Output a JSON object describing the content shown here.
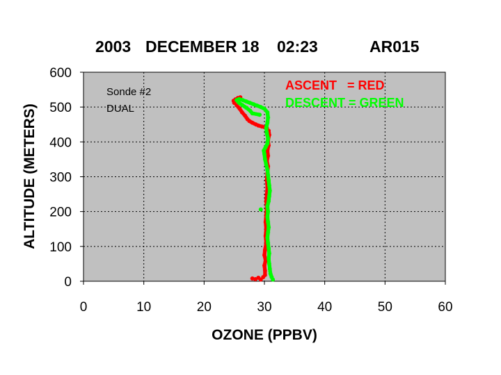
{
  "chart_data": {
    "type": "scatter",
    "title": {
      "year": "2003",
      "date": "DECEMBER 18",
      "time": "02:23",
      "station": "AR015"
    },
    "xlabel": "OZONE (PPBV)",
    "ylabel": "ALTITUDE (METERS)",
    "xlim": [
      0,
      60
    ],
    "ylim": [
      0,
      600
    ],
    "xticks": [
      "0",
      "10",
      "20",
      "30",
      "40",
      "50",
      "60"
    ],
    "yticks": [
      "0",
      "100",
      "200",
      "300",
      "400",
      "500",
      "600"
    ],
    "grid": true,
    "plot_background": "#c0c0c0",
    "annotations": [
      "Sonde #2",
      "DUAL"
    ],
    "legend_placement": "top-right",
    "legend": [
      {
        "text": "ASCENT   = RED",
        "color": "#ff0000"
      },
      {
        "text": "DESCENT = GREEN",
        "color": "#00ff00"
      }
    ],
    "series": [
      {
        "color": "#ff0000",
        "points": [
          [
            28.0,
            8
          ],
          [
            28.5,
            6
          ],
          [
            29.0,
            10
          ],
          [
            29.4,
            5
          ],
          [
            29.8,
            12
          ],
          [
            30.1,
            18
          ],
          [
            30.1,
            30
          ],
          [
            30.0,
            45
          ],
          [
            30.2,
            60
          ],
          [
            30.0,
            75
          ],
          [
            30.1,
            90
          ],
          [
            30.3,
            110
          ],
          [
            30.2,
            130
          ],
          [
            30.3,
            150
          ],
          [
            30.2,
            170
          ],
          [
            30.3,
            190
          ],
          [
            30.4,
            210
          ],
          [
            30.3,
            230
          ],
          [
            30.4,
            250
          ],
          [
            30.5,
            270
          ],
          [
            30.4,
            290
          ],
          [
            30.5,
            310
          ],
          [
            30.6,
            330
          ],
          [
            30.4,
            345
          ],
          [
            30.6,
            360
          ],
          [
            30.5,
            375
          ],
          [
            30.7,
            390
          ],
          [
            30.6,
            405
          ],
          [
            30.8,
            420
          ],
          [
            30.7,
            432
          ],
          [
            30.4,
            440
          ],
          [
            29.6,
            444
          ],
          [
            29.0,
            447
          ],
          [
            28.6,
            450
          ],
          [
            28.0,
            455
          ],
          [
            27.5,
            460
          ],
          [
            27.2,
            465
          ],
          [
            26.8,
            475
          ],
          [
            26.3,
            485
          ],
          [
            25.9,
            495
          ],
          [
            25.4,
            505
          ],
          [
            25.0,
            512
          ],
          [
            24.9,
            518
          ],
          [
            25.2,
            522
          ],
          [
            25.6,
            526
          ],
          [
            26.0,
            528
          ],
          [
            25.8,
            524
          ]
        ]
      },
      {
        "color": "#00ff00",
        "points": [
          [
            31.4,
            5
          ],
          [
            31.2,
            12
          ],
          [
            31.0,
            22
          ],
          [
            30.9,
            35
          ],
          [
            30.8,
            50
          ],
          [
            30.7,
            65
          ],
          [
            30.8,
            80
          ],
          [
            30.7,
            95
          ],
          [
            30.6,
            110
          ],
          [
            30.5,
            125
          ],
          [
            30.6,
            140
          ],
          [
            30.7,
            155
          ],
          [
            30.6,
            170
          ],
          [
            30.5,
            185
          ],
          [
            30.6,
            200
          ],
          [
            30.5,
            215
          ],
          [
            30.7,
            230
          ],
          [
            30.8,
            245
          ],
          [
            30.9,
            260
          ],
          [
            30.8,
            275
          ],
          [
            30.7,
            290
          ],
          [
            30.6,
            305
          ],
          [
            30.5,
            320
          ],
          [
            30.3,
            335
          ],
          [
            30.1,
            350
          ],
          [
            30.0,
            365
          ],
          [
            29.9,
            375
          ],
          [
            30.2,
            385
          ],
          [
            30.5,
            395
          ],
          [
            30.6,
            410
          ],
          [
            30.4,
            425
          ],
          [
            30.3,
            440
          ],
          [
            30.5,
            455
          ],
          [
            30.6,
            470
          ],
          [
            30.5,
            485
          ],
          [
            30.0,
            495
          ],
          [
            29.4,
            500
          ],
          [
            28.8,
            504
          ],
          [
            28.2,
            508
          ],
          [
            27.6,
            512
          ],
          [
            27.0,
            516
          ],
          [
            26.4,
            520
          ],
          [
            25.8,
            523
          ],
          [
            25.4,
            520
          ],
          [
            25.8,
            512
          ],
          [
            26.4,
            505
          ],
          [
            27.0,
            498
          ],
          [
            27.6,
            490
          ],
          [
            28.0,
            482
          ],
          [
            29.2,
            478
          ],
          [
            29.4,
            206
          ]
        ]
      }
    ]
  }
}
